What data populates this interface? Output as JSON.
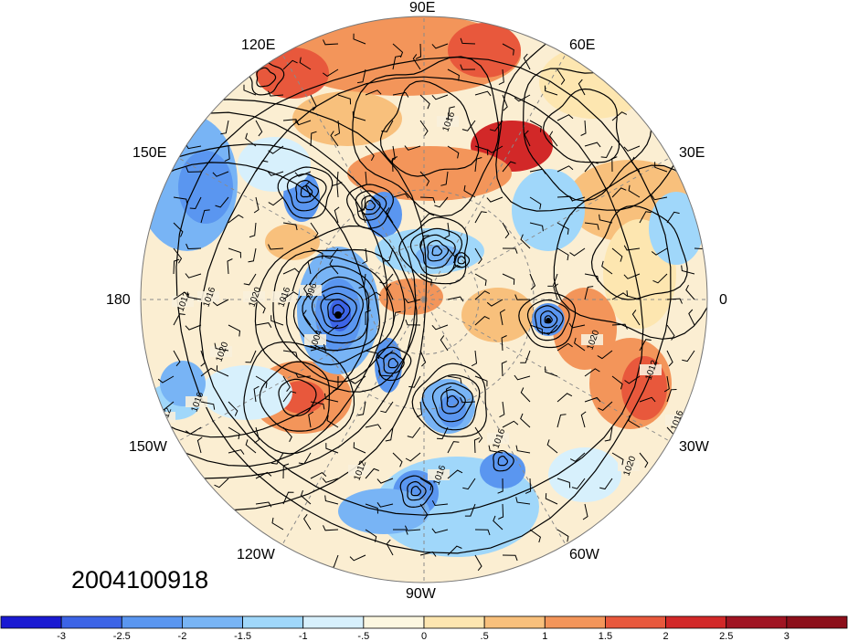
{
  "map": {
    "projection": "north-polar-stereographic",
    "field": "pressure contours with wind barbs over colour-shaded anomaly",
    "lon_labels": {
      "e90": "90E",
      "e60": "60E",
      "e120": "120E",
      "e30": "30E",
      "e150": "150E",
      "e0": "0",
      "e180": "180",
      "w30": "30W",
      "w150": "150W",
      "w60": "60W",
      "w120": "120W",
      "w90": "90W"
    },
    "contour_labels": [
      "1016",
      "1012",
      "1016",
      "1020",
      "1016",
      "996",
      "1004",
      "1020",
      "1016",
      "1020",
      "1012",
      "1016",
      "1020",
      "1016",
      "1012",
      "1012",
      "1016"
    ]
  },
  "timestamp": "2004100918",
  "colorbar": {
    "labels": [
      "-3",
      "-2.5",
      "-2",
      "-1.5",
      "-1",
      "-.5",
      "0",
      ".5",
      "1",
      "1.5",
      "2",
      "2.5",
      "3"
    ],
    "colors": [
      "#1a1ad2",
      "#3c64e6",
      "#5a96f0",
      "#78b4f5",
      "#a0d7fa",
      "#d7f0fc",
      "#fcf7e0",
      "#fde6b0",
      "#f8c07c",
      "#f3955a",
      "#e8583c",
      "#d22828",
      "#a01422",
      "#8c0f1a"
    ]
  }
}
